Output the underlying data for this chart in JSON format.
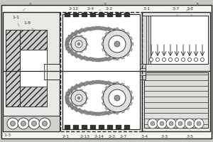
{
  "bg": "#f5f5f0",
  "lc": "#444444",
  "dc": "#222222",
  "fig_bg": "#c8c8c0",
  "label_fs": 4.5,
  "label_color": "#333333"
}
